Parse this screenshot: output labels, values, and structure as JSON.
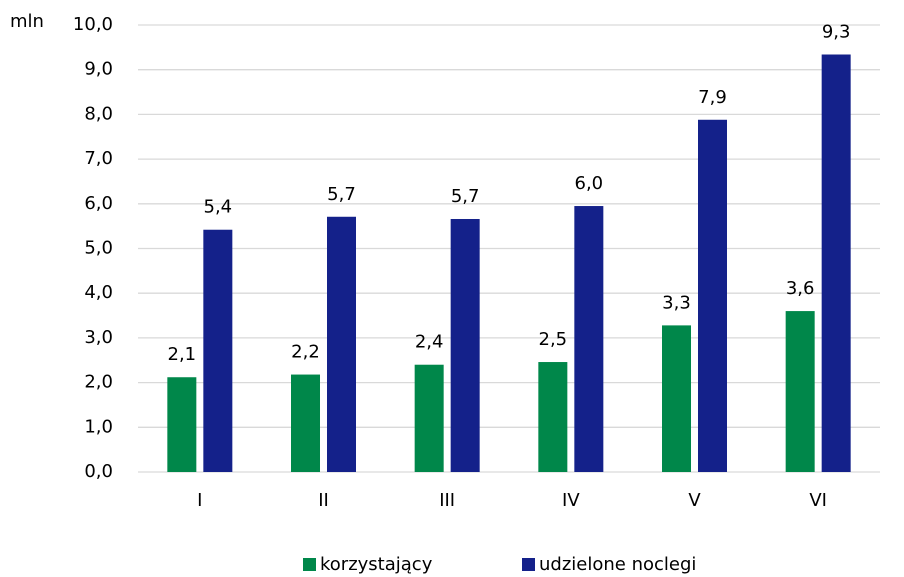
{
  "chart_data": {
    "type": "bar",
    "y_unit_label": "mln",
    "categories": [
      "I",
      "II",
      "III",
      "IV",
      "V",
      "VI"
    ],
    "series": [
      {
        "name": "korzystający",
        "color": "#00874a",
        "values": [
          2.12,
          2.18,
          2.4,
          2.46,
          3.28,
          3.6
        ],
        "value_labels": [
          "2,1",
          "2,2",
          "2,4",
          "2,5",
          "3,3",
          "3,6"
        ]
      },
      {
        "name": "udzielone noclegi",
        "color": "#14218a",
        "values": [
          5.42,
          5.71,
          5.66,
          5.95,
          7.88,
          9.34
        ],
        "value_labels": [
          "5,4",
          "5,7",
          "5,7",
          "6,0",
          "7,9",
          "9,3"
        ]
      }
    ],
    "ylim": [
      0,
      10
    ],
    "yticks": [
      {
        "value": 0,
        "label": "0,0"
      },
      {
        "value": 1,
        "label": "1,0"
      },
      {
        "value": 2,
        "label": "2,0"
      },
      {
        "value": 3,
        "label": "3,0"
      },
      {
        "value": 4,
        "label": "4,0"
      },
      {
        "value": 5,
        "label": "5,0"
      },
      {
        "value": 6,
        "label": "6,0"
      },
      {
        "value": 7,
        "label": "7,0"
      },
      {
        "value": 8,
        "label": "8,0"
      },
      {
        "value": 9,
        "label": "9,0"
      },
      {
        "value": 10,
        "label": "10,0"
      }
    ],
    "grid": true,
    "legend": "bottom"
  }
}
